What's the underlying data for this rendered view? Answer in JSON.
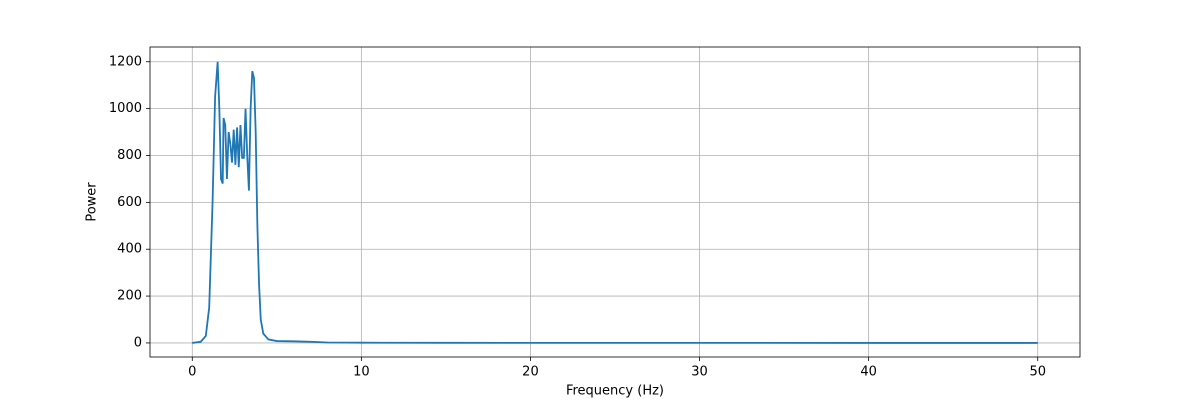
{
  "chart_data": {
    "type": "line",
    "x_label": "Frequency (Hz)",
    "y_label": "Power",
    "x": [
      0,
      0.5,
      0.8,
      1.0,
      1.2,
      1.35,
      1.5,
      1.6,
      1.7,
      1.8,
      1.85,
      1.95,
      2.05,
      2.15,
      2.25,
      2.35,
      2.45,
      2.55,
      2.65,
      2.75,
      2.85,
      2.95,
      3.05,
      3.15,
      3.25,
      3.35,
      3.45,
      3.55,
      3.65,
      3.75,
      3.85,
      3.95,
      4.05,
      4.2,
      4.5,
      5,
      6,
      7,
      8,
      10,
      15,
      20,
      30,
      40,
      50
    ],
    "series": [
      {
        "name": "Power",
        "color": "#1f77b4",
        "values": [
          0,
          5,
          30,
          150,
          600,
          1050,
          1200,
          1000,
          700,
          680,
          960,
          930,
          700,
          900,
          850,
          770,
          910,
          760,
          920,
          750,
          930,
          790,
          790,
          1000,
          800,
          650,
          1000,
          1160,
          1130,
          900,
          500,
          250,
          100,
          40,
          15,
          8,
          7,
          5,
          2,
          1,
          0.5,
          0.3,
          0.2,
          0.1,
          0
        ]
      }
    ],
    "xlim": [
      -2.5,
      52.5
    ],
    "xticks": [
      0,
      10,
      20,
      30,
      40,
      50
    ],
    "ylim": [
      -60,
      1263
    ],
    "yticks": [
      0,
      200,
      400,
      600,
      800,
      1000,
      1200
    ],
    "grid": true
  }
}
